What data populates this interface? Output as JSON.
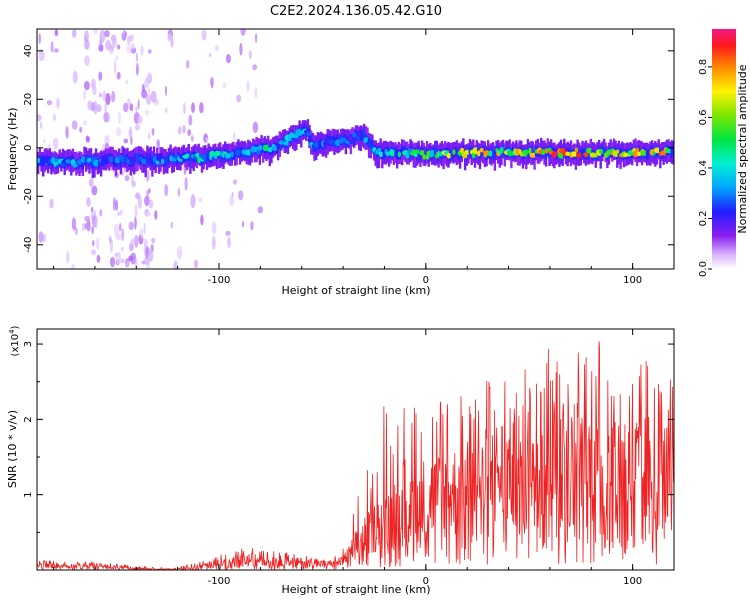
{
  "title": "C2E2.2024.136.05.42.G10",
  "chart_data": [
    {
      "type": "heatmap",
      "title": "C2E2.2024.136.05.42.G10",
      "xlabel": "Height of straight line (km)",
      "ylabel": "Frequency (Hz)",
      "xlim": [
        -188,
        120
      ],
      "ylim": [
        -50,
        49
      ],
      "x_ticks": [
        -100,
        0,
        100
      ],
      "x_tick_labels": [
        "-100",
        "0",
        "100"
      ],
      "y_ticks": [
        -40,
        -20,
        0,
        20,
        40
      ],
      "y_tick_labels": [
        "-40",
        "-20",
        "0",
        "20",
        "40"
      ],
      "colorbar": {
        "label": "Normalized spectral amplitude",
        "range": [
          0.0,
          0.95
        ],
        "ticks": [
          0.0,
          0.2,
          0.4,
          0.6,
          0.8
        ],
        "tick_labels": [
          "0.0",
          "0.2",
          "0.4",
          "0.6",
          "0.8"
        ]
      },
      "ridge": {
        "description": "Dominant frequency ridge vs height",
        "x": [
          -188,
          -170,
          -150,
          -130,
          -110,
          -95,
          -80,
          -70,
          -62,
          -58,
          -55,
          -50,
          -40,
          -30,
          -25,
          -20,
          -10,
          0,
          20,
          40,
          60,
          80,
          100,
          120
        ],
        "frequency": [
          -6,
          -6,
          -5,
          -5,
          -4,
          -3,
          -1,
          1,
          6,
          8,
          1,
          2,
          3,
          5,
          -1,
          -2,
          -2,
          -3,
          -2,
          -2,
          -2,
          -2,
          -2,
          -2
        ],
        "amplitude": [
          0.35,
          0.4,
          0.3,
          0.35,
          0.45,
          0.45,
          0.5,
          0.45,
          0.4,
          0.4,
          0.35,
          0.35,
          0.3,
          0.3,
          0.45,
          0.45,
          0.5,
          0.55,
          0.8,
          0.75,
          0.9,
          0.85,
          0.8,
          0.8
        ]
      }
    },
    {
      "type": "line",
      "xlabel": "Height of straight line (km)",
      "ylabel": "SNR (10 * v/v)",
      "y_scale_label": "(x10",
      "y_scale_exponent": "4",
      "y_scale_suffix": ")",
      "xlim": [
        -188,
        120
      ],
      "ylim": [
        0,
        3.2
      ],
      "x_ticks": [
        -100,
        0,
        100
      ],
      "x_tick_labels": [
        "-100",
        "0",
        "100"
      ],
      "y_ticks": [
        1,
        2,
        3
      ],
      "y_tick_labels": [
        "1",
        "2",
        "3"
      ],
      "color": "#ee2222",
      "envelope": {
        "x": [
          -188,
          -160,
          -130,
          -115,
          -100,
          -85,
          -70,
          -60,
          -50,
          -42,
          -38,
          -34,
          -30,
          -25,
          -20,
          -15,
          -10,
          -5,
          0,
          10,
          20,
          30,
          40,
          50,
          60,
          70,
          80,
          90,
          100,
          110,
          120
        ],
        "mean": [
          0.06,
          0.05,
          0.01,
          0.02,
          0.09,
          0.14,
          0.12,
          0.1,
          0.08,
          0.08,
          0.18,
          0.32,
          0.45,
          0.55,
          0.7,
          0.8,
          0.95,
          0.9,
          0.95,
          1.0,
          1.1,
          1.2,
          1.35,
          1.4,
          1.45,
          1.45,
          1.4,
          1.4,
          1.35,
          1.3,
          1.25
        ],
        "max": [
          0.13,
          0.11,
          0.03,
          0.07,
          0.2,
          0.32,
          0.25,
          0.2,
          0.15,
          0.2,
          0.5,
          0.9,
          1.25,
          1.5,
          2.25,
          1.9,
          2.2,
          2.2,
          2.25,
          2.3,
          2.6,
          2.55,
          2.75,
          2.8,
          3.0,
          2.9,
          3.15,
          2.9,
          2.9,
          2.75,
          2.5
        ]
      }
    }
  ]
}
